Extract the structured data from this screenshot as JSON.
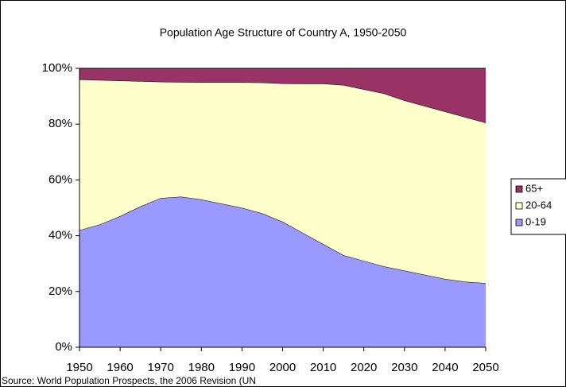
{
  "chart_data": {
    "type": "stacked_area",
    "title": "Population Age Structure of Country A, 1950-2050",
    "source": "Source: World Population Prospects, the 2006 Revision (UN",
    "x": [
      1950,
      1955,
      1960,
      1965,
      1970,
      1975,
      1980,
      1985,
      1990,
      1995,
      2000,
      2005,
      2010,
      2015,
      2020,
      2025,
      2030,
      2035,
      2040,
      2045,
      2050
    ],
    "series": [
      {
        "name": "0-19",
        "color": "#9999ff",
        "values": [
          42,
          44,
          47,
          50.5,
          53.5,
          54,
          53,
          51.5,
          50,
          48,
          45,
          41,
          37,
          33,
          31,
          29,
          27.5,
          26,
          24.5,
          23.5,
          23
        ]
      },
      {
        "name": "20-64",
        "color": "#ffffcc",
        "values": [
          54,
          51.8,
          48.6,
          44.9,
          41.7,
          41.1,
          42,
          43.5,
          45,
          46.9,
          49.6,
          53.5,
          57.5,
          61,
          61.5,
          62,
          61,
          60.5,
          60,
          59,
          57.5
        ]
      },
      {
        "name": "65+",
        "color": "#993366",
        "values": [
          4,
          4.2,
          4.4,
          4.6,
          4.8,
          4.9,
          5,
          5,
          5,
          5.1,
          5.4,
          5.5,
          5.5,
          6,
          7.5,
          9,
          11.5,
          13.5,
          15.5,
          17.5,
          19.5
        ]
      }
    ],
    "xlim": [
      1950,
      2050
    ],
    "xticks": [
      1950,
      1960,
      1970,
      1980,
      1990,
      2000,
      2010,
      2020,
      2030,
      2040,
      2050
    ],
    "ylim": [
      0,
      100
    ],
    "yticks": [
      {
        "value": 0,
        "label": "0%"
      },
      {
        "value": 20,
        "label": "20%"
      },
      {
        "value": 40,
        "label": "40%"
      },
      {
        "value": 60,
        "label": "60%"
      },
      {
        "value": 80,
        "label": "80%"
      },
      {
        "value": 100,
        "label": "100%"
      }
    ],
    "legend": "right",
    "grid": false
  }
}
